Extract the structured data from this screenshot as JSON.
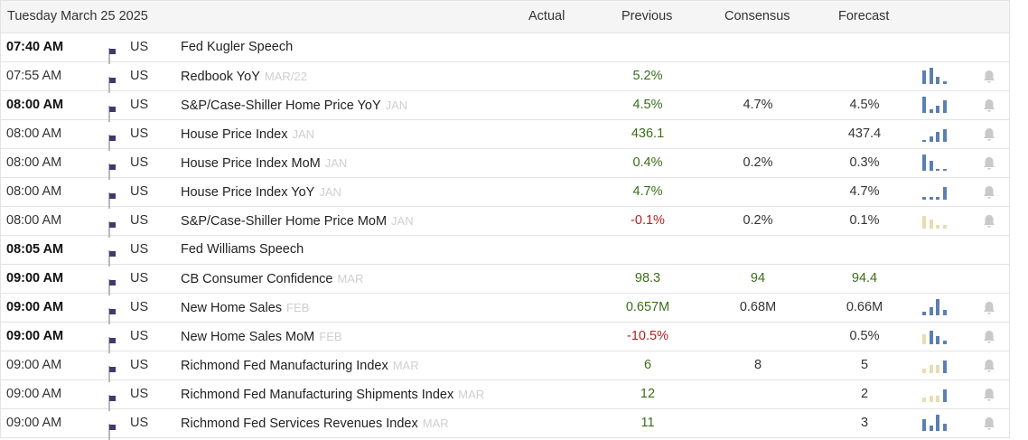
{
  "header": {
    "date": "Tuesday March 25 2025",
    "actual": "Actual",
    "previous": "Previous",
    "consensus": "Consensus",
    "forecast": "Forecast"
  },
  "colors": {
    "positive": "#3a6e19",
    "negative": "#b22222",
    "bar_blue": "#5b7fb1",
    "bar_beige": "#eadcb0",
    "bell": "#c9c9c9"
  },
  "rows": [
    {
      "time": "07:40 AM",
      "bold": true,
      "country": "US",
      "event": "Fed Kugler Speech",
      "ref": "",
      "actual": "",
      "previous": "",
      "previous_color": "",
      "consensus": "",
      "consensus_color": "",
      "forecast": "",
      "forecast_color": "",
      "spark": null,
      "bell": false
    },
    {
      "time": "07:55 AM",
      "bold": false,
      "country": "US",
      "event": "Redbook YoY",
      "ref": "MAR/22",
      "actual": "",
      "previous": "5.2%",
      "previous_color": "green",
      "consensus": "",
      "consensus_color": "",
      "forecast": "",
      "forecast_color": "",
      "spark": {
        "color": "blue",
        "levels": [
          0.85,
          1.0,
          0.45,
          0.15
        ]
      },
      "bell": true
    },
    {
      "time": "08:00 AM",
      "bold": true,
      "country": "US",
      "event": "S&P/Case-Shiller Home Price YoY",
      "ref": "JAN",
      "actual": "",
      "previous": "4.5%",
      "previous_color": "green",
      "consensus": "4.7%",
      "consensus_color": "plain",
      "forecast": "4.5%",
      "forecast_color": "plain",
      "spark": {
        "color": "blue",
        "levels": [
          1.0,
          0.2,
          0.45,
          0.75
        ]
      },
      "bell": true
    },
    {
      "time": "08:00 AM",
      "bold": false,
      "country": "US",
      "event": "House Price Index",
      "ref": "JAN",
      "actual": "",
      "previous": "436.1",
      "previous_color": "green",
      "consensus": "",
      "consensus_color": "",
      "forecast": "437.4",
      "forecast_color": "plain",
      "spark": {
        "color": "blue",
        "levels": [
          0.1,
          0.35,
          0.6,
          0.75
        ]
      },
      "bell": true
    },
    {
      "time": "08:00 AM",
      "bold": false,
      "country": "US",
      "event": "House Price Index MoM",
      "ref": "JAN",
      "actual": "",
      "previous": "0.4%",
      "previous_color": "green",
      "consensus": "0.2%",
      "consensus_color": "plain",
      "forecast": "0.3%",
      "forecast_color": "plain",
      "spark": {
        "color": "blue",
        "levels": [
          1.0,
          0.6,
          0.1,
          0.1
        ]
      },
      "bell": true
    },
    {
      "time": "08:00 AM",
      "bold": false,
      "country": "US",
      "event": "House Price Index YoY",
      "ref": "JAN",
      "actual": "",
      "previous": "4.7%",
      "previous_color": "green",
      "consensus": "",
      "consensus_color": "",
      "forecast": "4.7%",
      "forecast_color": "plain",
      "spark": {
        "color": "blue",
        "levels": [
          0.15,
          0.15,
          0.15,
          0.8
        ]
      },
      "bell": true
    },
    {
      "time": "08:00 AM",
      "bold": false,
      "country": "US",
      "event": "S&P/Case-Shiller Home Price MoM",
      "ref": "JAN",
      "actual": "",
      "previous": "-0.1%",
      "previous_color": "red",
      "consensus": "0.2%",
      "consensus_color": "plain",
      "forecast": "0.1%",
      "forecast_color": "plain",
      "spark": {
        "color": "beige",
        "levels": [
          0.8,
          0.55,
          0.2,
          0.2
        ]
      },
      "bell": true
    },
    {
      "time": "08:05 AM",
      "bold": true,
      "country": "US",
      "event": "Fed Williams Speech",
      "ref": "",
      "actual": "",
      "previous": "",
      "previous_color": "",
      "consensus": "",
      "consensus_color": "",
      "forecast": "",
      "forecast_color": "",
      "spark": null,
      "bell": false
    },
    {
      "time": "09:00 AM",
      "bold": true,
      "country": "US",
      "event": "CB Consumer Confidence",
      "ref": "MAR",
      "actual": "",
      "previous": "98.3",
      "previous_color": "green",
      "consensus": "94",
      "consensus_color": "green",
      "forecast": "94.4",
      "forecast_color": "green",
      "spark": null,
      "bell": false
    },
    {
      "time": "09:00 AM",
      "bold": true,
      "country": "US",
      "event": "New Home Sales",
      "ref": "FEB",
      "actual": "",
      "previous": "0.657M",
      "previous_color": "green",
      "consensus": "0.68M",
      "consensus_color": "plain",
      "forecast": "0.66M",
      "forecast_color": "plain",
      "spark": {
        "color": "blue",
        "levels": [
          0.2,
          0.5,
          1.0,
          0.35
        ]
      },
      "bell": true
    },
    {
      "time": "09:00 AM",
      "bold": true,
      "country": "US",
      "event": "New Home Sales MoM",
      "ref": "FEB",
      "actual": "",
      "previous": "-10.5%",
      "previous_color": "red",
      "consensus": "",
      "consensus_color": "",
      "forecast": "0.5%",
      "forecast_color": "plain",
      "spark": {
        "color": "mixed",
        "levels": [
          0.6,
          0.85,
          0.5,
          0.2
        ]
      },
      "bell": true
    },
    {
      "time": "09:00 AM",
      "bold": false,
      "country": "US",
      "event": "Richmond Fed Manufacturing Index",
      "ref": "MAR",
      "actual": "",
      "previous": "6",
      "previous_color": "green",
      "consensus": "8",
      "consensus_color": "plain",
      "forecast": "5",
      "forecast_color": "plain",
      "spark": {
        "color": "mixed2",
        "levels": [
          0.3,
          0.5,
          0.5,
          0.8
        ]
      },
      "bell": true
    },
    {
      "time": "09:00 AM",
      "bold": false,
      "country": "US",
      "event": "Richmond Fed Manufacturing Shipments Index",
      "ref": "MAR",
      "actual": "",
      "previous": "12",
      "previous_color": "green",
      "consensus": "",
      "consensus_color": "",
      "forecast": "2",
      "forecast_color": "plain",
      "spark": {
        "color": "mixed2",
        "levels": [
          0.3,
          0.4,
          0.4,
          0.8
        ]
      },
      "bell": true
    },
    {
      "time": "09:00 AM",
      "bold": false,
      "country": "US",
      "event": "Richmond Fed Services Revenues Index",
      "ref": "MAR",
      "actual": "",
      "previous": "11",
      "previous_color": "green",
      "consensus": "",
      "consensus_color": "",
      "forecast": "3",
      "forecast_color": "plain",
      "spark": {
        "color": "blue",
        "levels": [
          0.7,
          0.35,
          1.0,
          0.45
        ]
      },
      "bell": true
    }
  ]
}
